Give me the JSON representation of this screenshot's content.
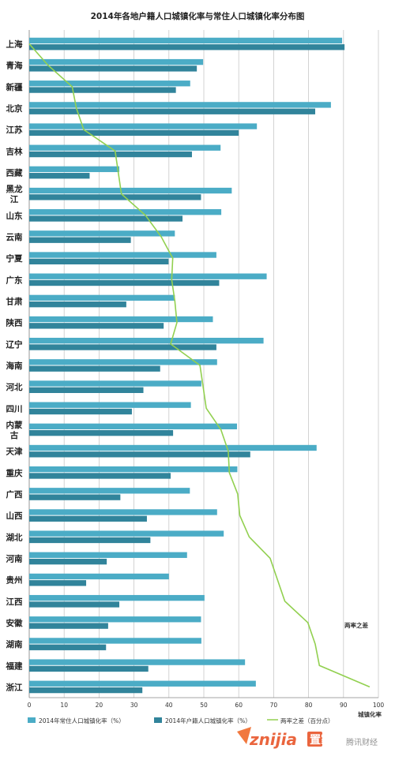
{
  "chart_data": {
    "type": "bar",
    "title": "2014年各地户籍人口城镇化率与常住人口城镇化率分布图",
    "xlabel": "城镇化率",
    "xlim": [
      0,
      100
    ],
    "xticks": [
      0,
      10,
      20,
      30,
      40,
      50,
      60,
      70,
      80,
      90,
      100
    ],
    "grid": true,
    "legend_position": "bottom",
    "categories": [
      "上海",
      "青海",
      "新疆",
      "北京",
      "江苏",
      "吉林",
      "西藏",
      "黑龙江",
      "山东",
      "云南",
      "宁夏",
      "广东",
      "甘肃",
      "陕西",
      "辽宁",
      "海南",
      "河北",
      "四川",
      "内蒙古",
      "天津",
      "重庆",
      "广西",
      "山西",
      "湖北",
      "河南",
      "贵州",
      "江西",
      "安徽",
      "湖南",
      "福建",
      "浙江"
    ],
    "category_display": [
      "上海",
      "青海",
      "新疆",
      "北京",
      "江苏",
      "吉林",
      "西藏",
      "黑龙\n江",
      "山东",
      "云南",
      "宁夏",
      "广东",
      "甘肃",
      "陕西",
      "辽宁",
      "海南",
      "河北",
      "四川",
      "内蒙\n古",
      "天津",
      "重庆",
      "广西",
      "山西",
      "湖北",
      "河南",
      "贵州",
      "江西",
      "安徽",
      "湖南",
      "福建",
      "浙江"
    ],
    "series": [
      {
        "name": "2014年常住人口城镇化率（%）",
        "color": "#4bacc6",
        "values": [
          89.6,
          49.8,
          46.1,
          86.4,
          65.2,
          54.8,
          25.8,
          58.0,
          55.0,
          41.7,
          53.6,
          68.0,
          41.7,
          52.6,
          67.1,
          53.8,
          49.3,
          46.3,
          59.5,
          82.3,
          59.6,
          46.0,
          53.8,
          55.7,
          45.2,
          40.0,
          50.2,
          49.2,
          49.3,
          61.8,
          64.9
        ]
      },
      {
        "name": "2014年户籍人口城镇化率（%）",
        "color": "#31849b",
        "values": [
          90.3,
          48.0,
          42.0,
          81.9,
          60.0,
          46.6,
          17.3,
          49.2,
          43.9,
          29.1,
          39.9,
          54.4,
          27.8,
          38.5,
          53.6,
          37.5,
          32.7,
          29.4,
          41.2,
          63.3,
          40.5,
          26.1,
          33.7,
          34.7,
          22.2,
          16.3,
          25.8,
          22.6,
          22.0,
          34.1,
          32.4
        ]
      },
      {
        "name": "两率之差（百分点）",
        "color": "#92d050",
        "type": "line",
        "values": [
          -0.7,
          1.8,
          4.1,
          4.5,
          5.2,
          8.2,
          8.5,
          8.8,
          11.1,
          12.6,
          13.7,
          13.6,
          13.9,
          14.1,
          13.5,
          16.3,
          16.6,
          16.9,
          18.3,
          19.0,
          19.1,
          19.9,
          20.1,
          21.0,
          23.0,
          23.7,
          24.4,
          26.6,
          27.3,
          27.7,
          32.5
        ]
      }
    ],
    "annotations": [
      "两率之差"
    ]
  },
  "watermark": {
    "brand_latin": "znijia",
    "brand_cn": "置家网",
    "sub": "腾讯财经"
  }
}
